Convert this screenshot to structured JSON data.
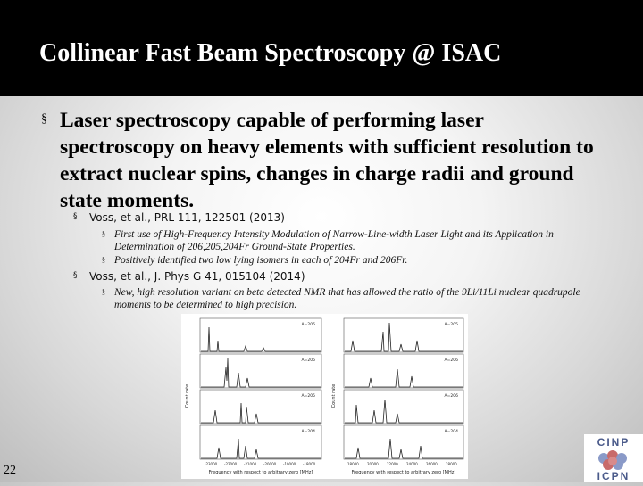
{
  "slide": {
    "title": "Collinear Fast Beam Spectroscopy @ ISAC",
    "number": "22"
  },
  "bullet": {
    "marker": "§",
    "text": "Laser spectroscopy capable of performing laser spectroscopy on heavy elements with sufficient resolution to extract nuclear spins, changes in charge radii and ground state moments."
  },
  "refs": [
    {
      "marker": "§",
      "text": "Voss, et al., PRL 111, 122501 (2013)",
      "subs": [
        {
          "marker": "§",
          "text": "First use of High-Frequency Intensity Modulation of Narrow-Line-width Laser Light and its Application in Determination of 206,205,204Fr Ground-State Properties."
        },
        {
          "marker": "§",
          "text": "Positively identified two low lying isomers in each of 204Fr and 206Fr."
        }
      ]
    },
    {
      "marker": "§",
      "text": "Voss, et al., J. Phys G 41, 015104 (2014)",
      "subs": [
        {
          "marker": "§",
          "text": "New, high resolution variant on beta detected NMR that has allowed the ratio of the 9Li/11Li nuclear quadrupole moments to be determined to high precision."
        }
      ]
    }
  ],
  "figure": {
    "left_panel": {
      "ylabel": "Count rate",
      "xlabel": "Frequency with respect to arbitrary zero [MHz]",
      "xticks": [
        "-23000",
        "-22000",
        "-21000",
        "-20000",
        "-19000",
        "-18000"
      ],
      "labels": [
        "A=206",
        "A=206",
        "A=205",
        "A=204"
      ]
    },
    "right_panel": {
      "ylabel": "Count rate",
      "xlabel": "Frequency with respect to arbitrary zero [MHz]",
      "xticks": [
        "18000",
        "20000",
        "22000",
        "24000",
        "26000",
        "28000"
      ],
      "labels": [
        "A=205",
        "A=206",
        "A=206",
        "A=204"
      ]
    }
  },
  "logo": {
    "top": "CINP",
    "bottom": "ICPN"
  }
}
